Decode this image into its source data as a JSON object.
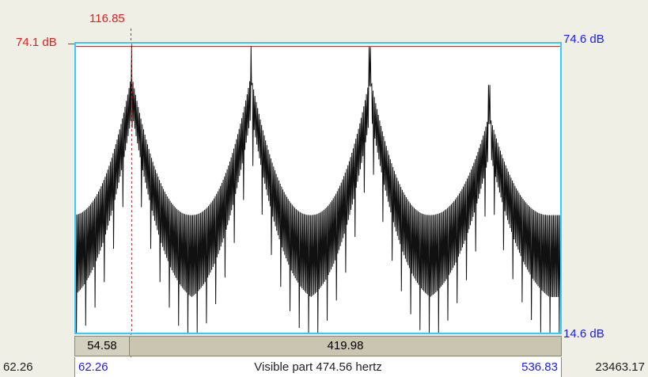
{
  "colors": {
    "accent_red": "#e02020",
    "accent_blue": "#1a1aff",
    "frame_cyan": "#33ccff",
    "trace": "#111111"
  },
  "cursor": {
    "frequency": "116.85"
  },
  "db_labels": {
    "left_top": "74.1 dB",
    "right_top": "74.6 dB",
    "right_bottom": "14.6 dB"
  },
  "selection": {
    "left_segment": "54.58",
    "right_segment": "419.98"
  },
  "bottom_bar": {
    "total_start": "62.26",
    "visible_start": "62.26",
    "visible_label": "Visible part 474.56 hertz",
    "visible_end": "536.83",
    "total_end": "23463.17"
  },
  "chart_data": {
    "type": "line",
    "xlim": [
      62.26,
      536.83
    ],
    "ylim": [
      14.6,
      74.6
    ],
    "cursor_x": 116.85,
    "harmonic_peaks": [
      {
        "x": 116.85,
        "y": 74.1
      },
      {
        "x": 233.7,
        "y": 74.0
      },
      {
        "x": 350.55,
        "y": 73.9
      },
      {
        "x": 467.4,
        "y": 66.0
      }
    ]
  }
}
